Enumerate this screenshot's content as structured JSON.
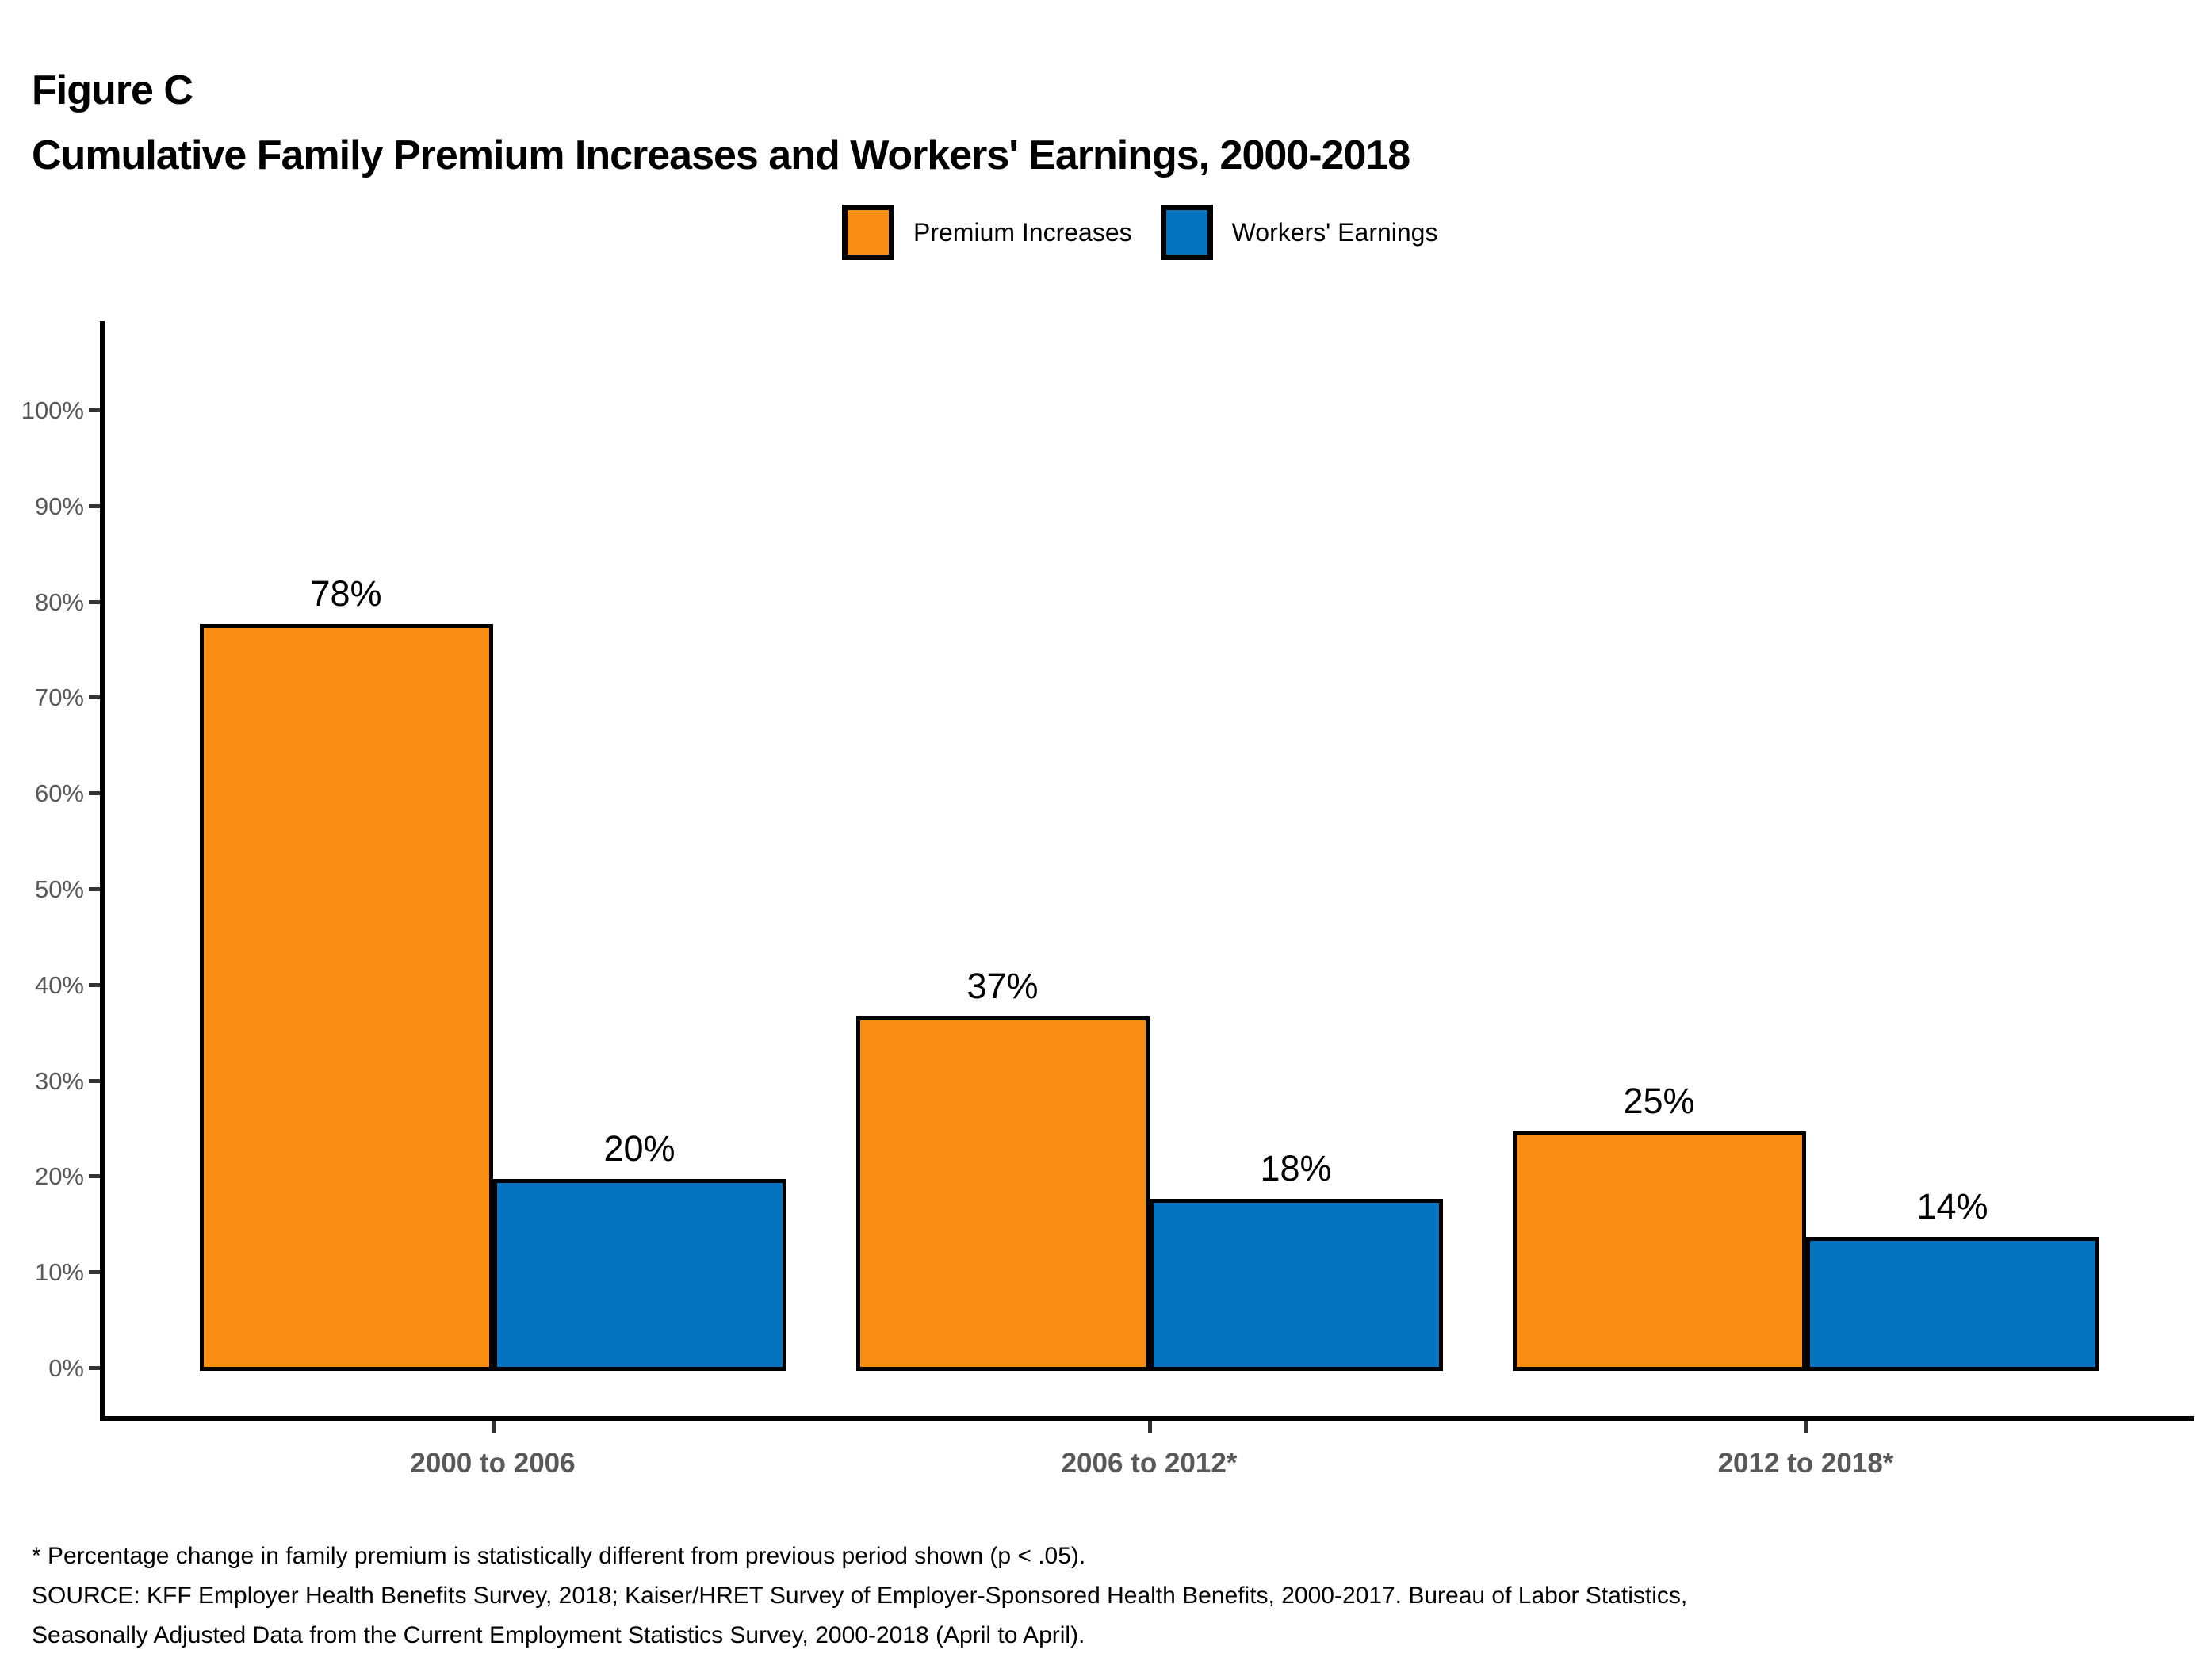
{
  "header": {
    "figure_label": "Figure C",
    "title": "Cumulative Family Premium Increases and Workers' Earnings, 2000-2018"
  },
  "colors": {
    "premium_orange": "#F98C12",
    "earnings_blue": "#0673C1",
    "axis_black": "#000000",
    "tick_label_gray": "#595959"
  },
  "legend": [
    {
      "label": "Premium Increases",
      "color": "#F98C12"
    },
    {
      "label": "Workers' Earnings",
      "color": "#0673C1"
    }
  ],
  "chart_data": {
    "type": "bar",
    "title": "Cumulative Family Premium Increases and Workers' Earnings, 2000-2018",
    "categories": [
      "2000 to 2006",
      "2006 to 2012*",
      "2012 to 2018*"
    ],
    "series": [
      {
        "name": "Premium Increases",
        "color": "#F98C12",
        "values": [
          78,
          37,
          25
        ]
      },
      {
        "name": "Workers' Earnings",
        "color": "#0673C1",
        "values": [
          20,
          18,
          14
        ]
      }
    ],
    "value_labels": [
      [
        "78%",
        "37%",
        "25%"
      ],
      [
        "20%",
        "18%",
        "14%"
      ]
    ],
    "xlabel": "",
    "ylabel": "",
    "ylim": [
      0,
      100
    ],
    "ytick_step": 10,
    "ytick_suffix": "%",
    "grid": false,
    "legend_position": "top-center"
  },
  "footnotes": [
    "* Percentage change in family premium is statistically different from previous period shown (p < .05).",
    "SOURCE: KFF Employer Health Benefits Survey, 2018; Kaiser/HRET Survey of Employer-Sponsored Health Benefits, 2000-2017. Bureau of Labor Statistics,",
    "Seasonally Adjusted Data from the Current Employment Statistics Survey, 2000-2018 (April to April)."
  ]
}
